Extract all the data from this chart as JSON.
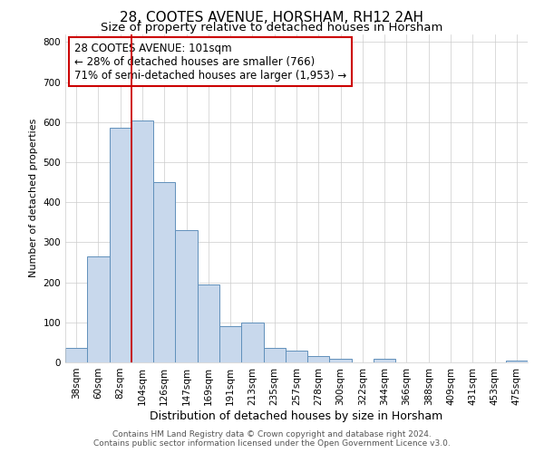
{
  "title": "28, COOTES AVENUE, HORSHAM, RH12 2AH",
  "subtitle": "Size of property relative to detached houses in Horsham",
  "xlabel": "Distribution of detached houses by size in Horsham",
  "ylabel": "Number of detached properties",
  "categories": [
    "38sqm",
    "60sqm",
    "82sqm",
    "104sqm",
    "126sqm",
    "147sqm",
    "169sqm",
    "191sqm",
    "213sqm",
    "235sqm",
    "257sqm",
    "278sqm",
    "300sqm",
    "322sqm",
    "344sqm",
    "366sqm",
    "388sqm",
    "409sqm",
    "431sqm",
    "453sqm",
    "475sqm"
  ],
  "values": [
    37,
    265,
    585,
    605,
    450,
    330,
    195,
    90,
    100,
    37,
    30,
    15,
    10,
    0,
    10,
    0,
    0,
    0,
    0,
    0,
    5
  ],
  "bar_color": "#c8d8ec",
  "bar_edge_color": "#6090bb",
  "highlight_color": "#cc0000",
  "highlight_index": 3,
  "annotation_text": "28 COOTES AVENUE: 101sqm\n← 28% of detached houses are smaller (766)\n71% of semi-detached houses are larger (1,953) →",
  "ylim": [
    0,
    820
  ],
  "yticks": [
    0,
    100,
    200,
    300,
    400,
    500,
    600,
    700,
    800
  ],
  "footer_line1": "Contains HM Land Registry data © Crown copyright and database right 2024.",
  "footer_line2": "Contains public sector information licensed under the Open Government Licence v3.0.",
  "bg_color": "#ffffff",
  "plot_bg_color": "#ffffff",
  "title_fontsize": 11,
  "subtitle_fontsize": 9.5,
  "xlabel_fontsize": 9,
  "ylabel_fontsize": 8,
  "tick_fontsize": 7.5,
  "footer_fontsize": 6.5,
  "annotation_fontsize": 8.5
}
